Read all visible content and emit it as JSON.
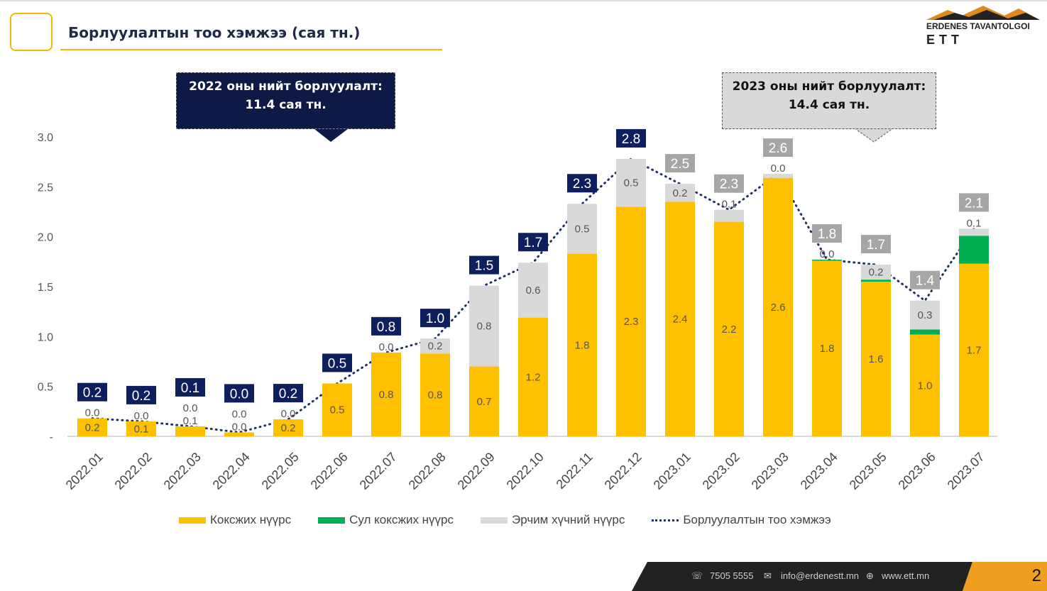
{
  "header": {
    "title": "Борлуулалтын тоо хэмжээ (сая тн.)",
    "logo_text": "ERDENES TAVANTOLGOI",
    "logo_sub": "ETT"
  },
  "callouts": {
    "y2022": "2022 оны нийт борлуулалт:\n11.4 сая тн.",
    "y2023": "2023 оны нийт борлуулалт:\n14.4 сая тн."
  },
  "footer": {
    "phone": "7505 5555",
    "email": "info@erdenestt.mn",
    "web": "www.ett.mn",
    "page": "2"
  },
  "colors": {
    "coking": "#ffc000",
    "semi_soft": "#00b050",
    "thermal": "#d9d9d9",
    "total_line": "#1f3264",
    "label_2022": "#0d1f5c",
    "label_2023": "#a6a6a6"
  },
  "chart_data": {
    "type": "bar",
    "stacked": true,
    "categories": [
      "2022.01",
      "2022.02",
      "2022.03",
      "2022.04",
      "2022.05",
      "2022.06",
      "2022.07",
      "2022.08",
      "2022.09",
      "2022.10",
      "2022.11",
      "2022.12",
      "2023.01",
      "2023.02",
      "2023.03",
      "2023.04",
      "2023.05",
      "2023.06",
      "2023.07"
    ],
    "ylim": [
      0,
      3.0
    ],
    "yticks": [
      "-",
      "0.5",
      "1.0",
      "1.5",
      "2.0",
      "2.5",
      "3.0"
    ],
    "grid": false,
    "legend_position": "bottom",
    "series": [
      {
        "name": "Коксжих нүүрс",
        "values": [
          0.18,
          0.15,
          0.1,
          0.04,
          0.17,
          0.53,
          0.84,
          0.83,
          0.7,
          1.19,
          1.83,
          2.3,
          2.35,
          2.15,
          2.59,
          1.76,
          1.55,
          1.02,
          1.73
        ],
        "labels": [
          "0.2",
          "0.1",
          "0.1",
          "0.0",
          "0.2",
          "0.5",
          "0.8",
          "0.8",
          "0.7",
          "1.2",
          "1.8",
          "2.3",
          "2.4",
          "2.2",
          "2.6",
          "1.8",
          "1.6",
          "1.0",
          "1.7"
        ]
      },
      {
        "name": "Сул коксжих нүүрс",
        "values": [
          0,
          0,
          0,
          0,
          0,
          0,
          0,
          0,
          0,
          0,
          0,
          0,
          0,
          0,
          0,
          0.01,
          0.02,
          0.05,
          0.28
        ]
      },
      {
        "name": "Эрчим хүчний нүүрс",
        "values": [
          0.0,
          0.0,
          0.0,
          0.0,
          0.0,
          0,
          0.0,
          0.15,
          0.81,
          0.55,
          0.5,
          0.48,
          0.18,
          0.12,
          0.04,
          0.0,
          0.15,
          0.29,
          0.07
        ],
        "labels": [
          "0.0",
          "0.0",
          "0.0",
          "0.0",
          "0.0",
          "",
          "0.0",
          "0.2",
          "0.8",
          "0.6",
          "0.5",
          "0.5",
          "0.2",
          "0.1",
          "0.0",
          "0.0",
          "0.2",
          "0.3",
          "0.1"
        ]
      },
      {
        "name": "Борлуулалтын тоо хэмжээ",
        "type": "line",
        "values": [
          0.18,
          0.15,
          0.1,
          0.04,
          0.17,
          0.53,
          0.84,
          0.98,
          1.51,
          1.74,
          2.33,
          2.78,
          2.53,
          2.27,
          2.63,
          1.77,
          1.72,
          1.36,
          2.08
        ],
        "labels": [
          "0.2",
          "0.2",
          "0.1",
          "0.0",
          "0.2",
          "0.5",
          "0.8",
          "1.0",
          "1.5",
          "1.7",
          "2.3",
          "2.8",
          "2.5",
          "2.3",
          "2.6",
          "1.8",
          "1.7",
          "1.4",
          "2.1"
        ]
      }
    ]
  }
}
